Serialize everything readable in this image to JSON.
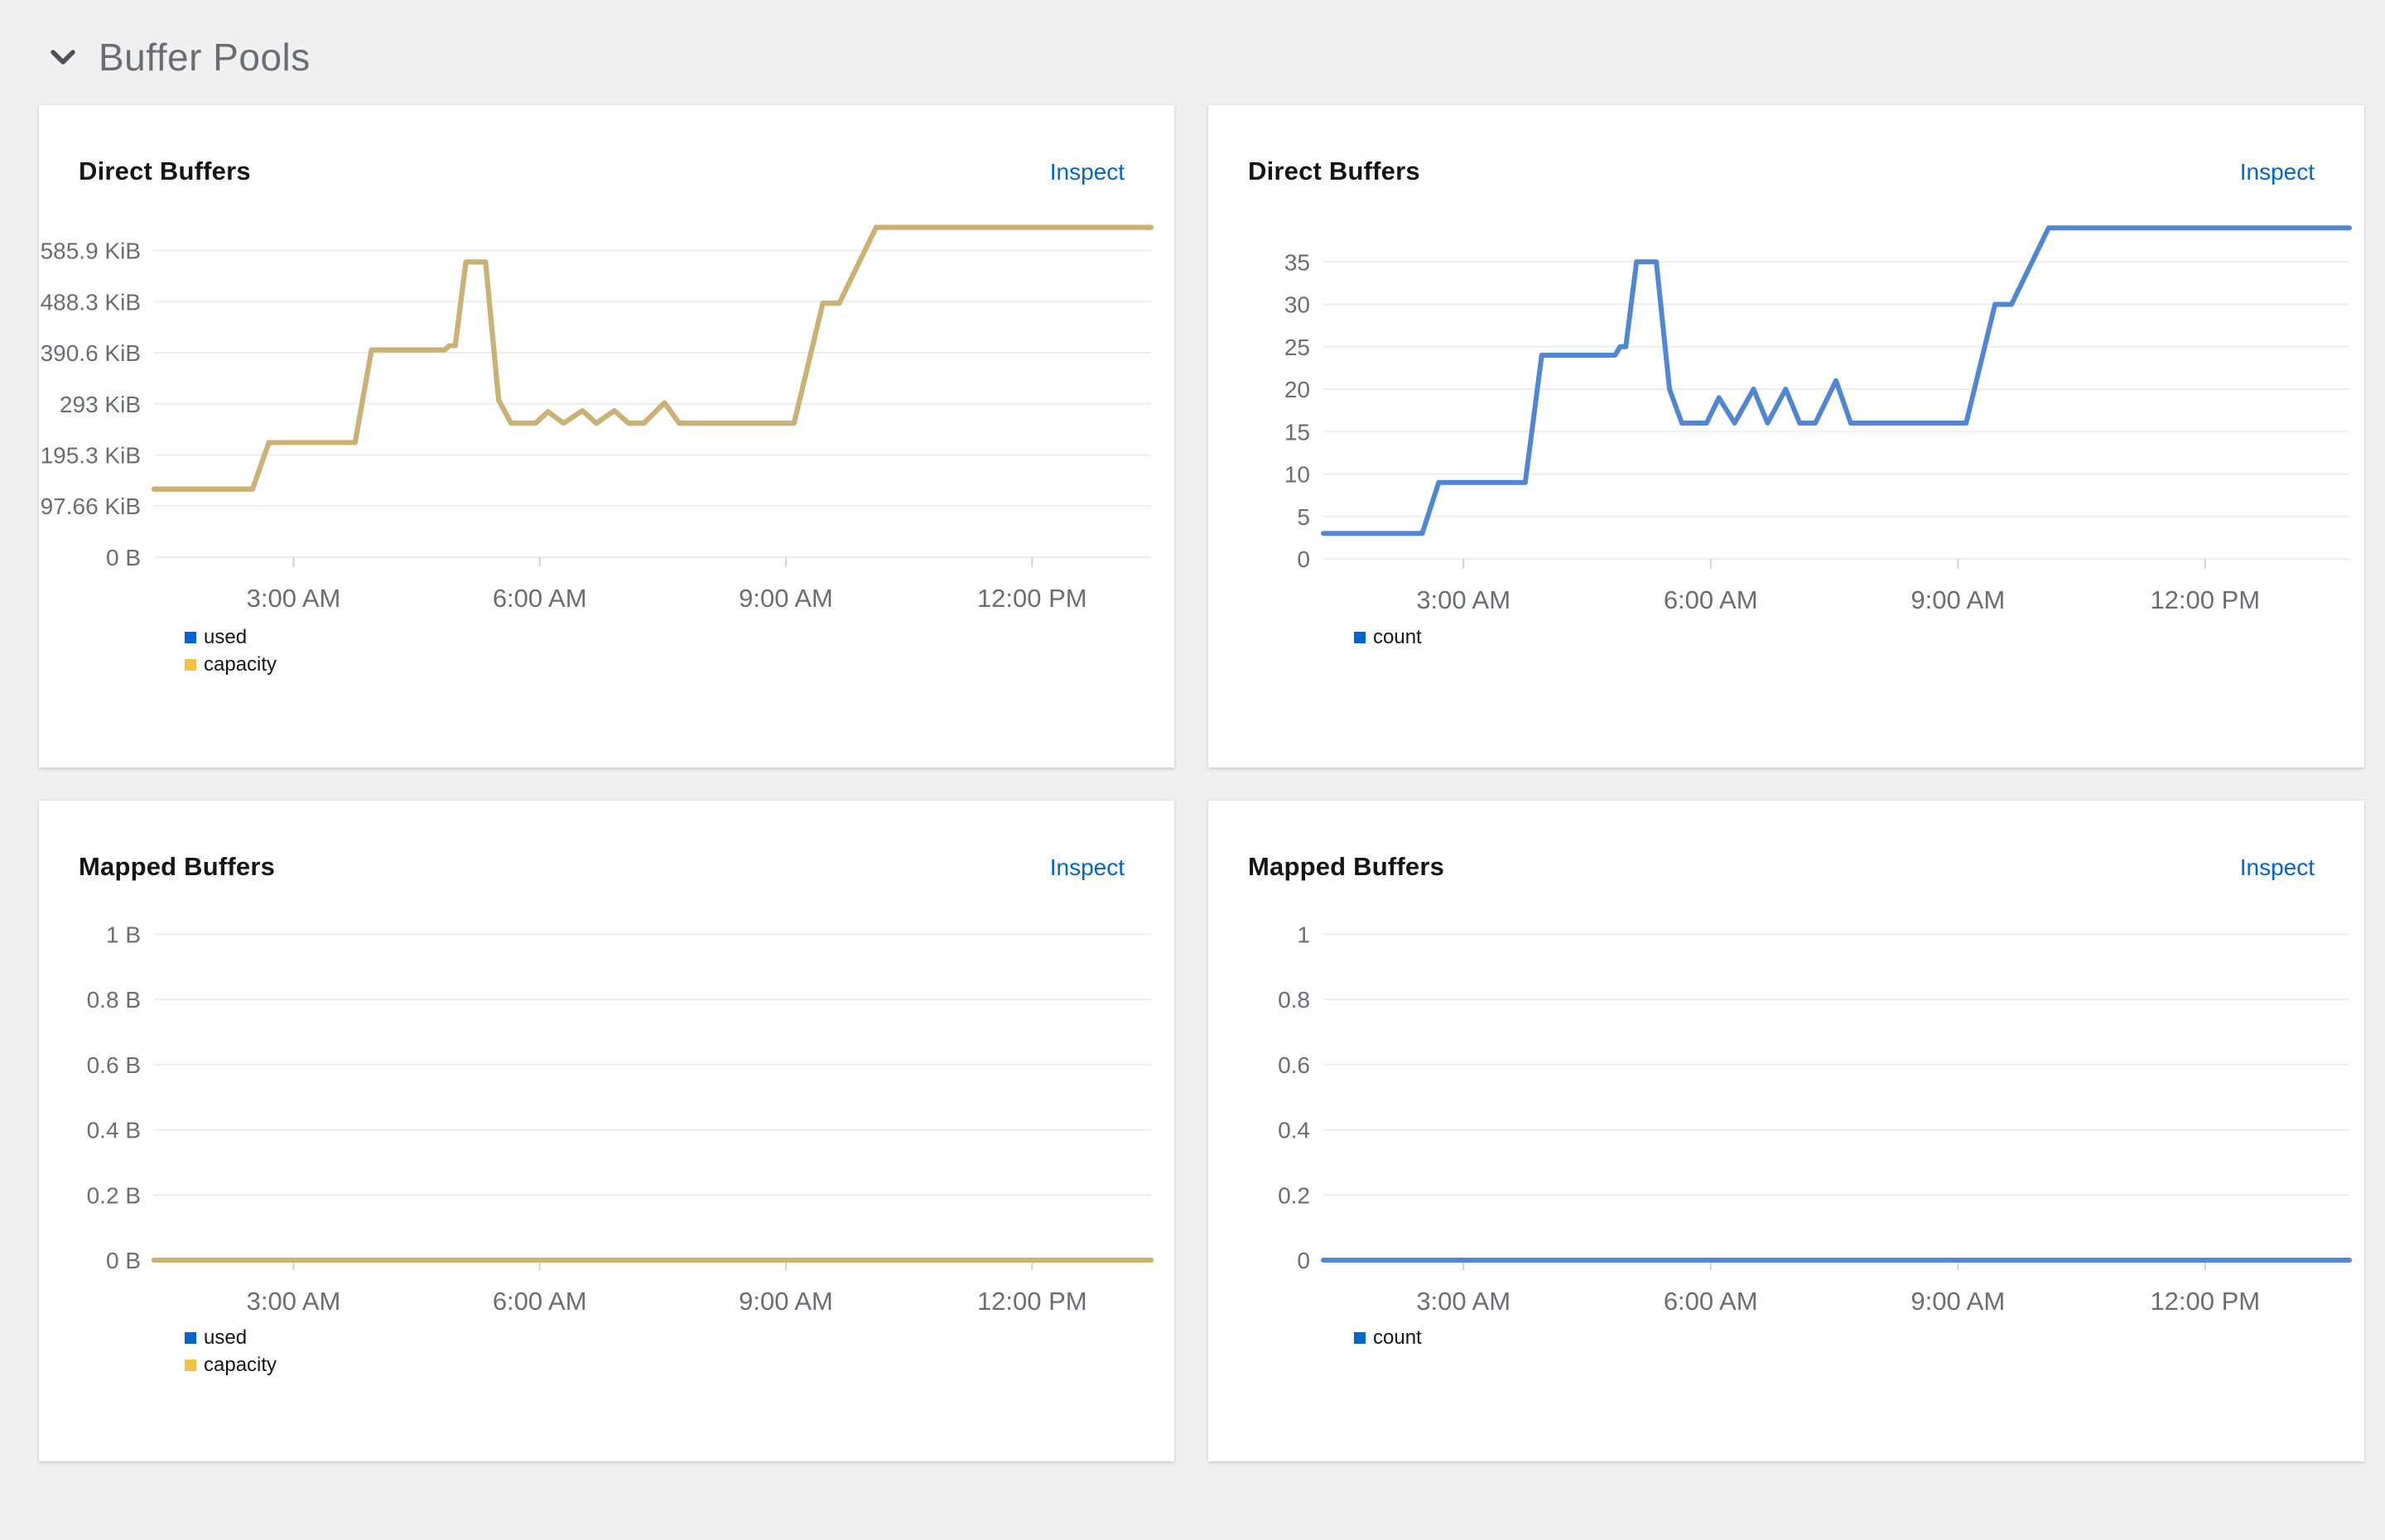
{
  "section": {
    "title": "Buffer Pools"
  },
  "colors": {
    "page_background": "#f0f0f0",
    "card_background": "#ffffff",
    "link": "#0066cc",
    "section_title": "#6a6e73",
    "card_title": "#151515",
    "axis_label": "#6a6e73",
    "gridline": "#ededed",
    "tick_mark": "#d2d2d2",
    "line_gold": "#ccb171",
    "line_blue": "#5087d5",
    "legend_blue": "#0066cc",
    "legend_gold": "#f4c145"
  },
  "chart_data": [
    {
      "type": "line",
      "title": "Direct Buffers",
      "inspect_label": "Inspect",
      "x_axis": {
        "domain": [
          1.3,
          13.45
        ],
        "ticks": [
          {
            "v": 3,
            "label": "3:00 AM"
          },
          {
            "v": 6,
            "label": "6:00 AM"
          },
          {
            "v": 9,
            "label": "9:00 AM"
          },
          {
            "v": 12,
            "label": "12:00 PM"
          }
        ]
      },
      "y_axis": {
        "domain": [
          0,
          650
        ],
        "unit": "KiB",
        "ticks": [
          {
            "v": 0,
            "label": "0 B"
          },
          {
            "v": 97.66,
            "label": "97.66 KiB"
          },
          {
            "v": 195.31,
            "label": "195.3 KiB"
          },
          {
            "v": 292.97,
            "label": "293 KiB"
          },
          {
            "v": 390.63,
            "label": "390.6 KiB"
          },
          {
            "v": 488.28,
            "label": "488.3 KiB"
          },
          {
            "v": 585.94,
            "label": "585.9 KiB"
          }
        ]
      },
      "series": [
        {
          "name": "used",
          "line_color": "#5087d5",
          "points": [
            [
              1.3,
              130
            ],
            [
              2.5,
              130
            ],
            [
              2.7,
              219
            ],
            [
              3.75,
              219
            ],
            [
              3.95,
              396
            ],
            [
              4.84,
              396
            ],
            [
              4.9,
              404
            ],
            [
              4.97,
              404
            ],
            [
              5.1,
              564
            ],
            [
              5.34,
              564
            ],
            [
              5.5,
              300
            ],
            [
              5.65,
              256
            ],
            [
              5.95,
              256
            ],
            [
              6.1,
              278
            ],
            [
              6.29,
              256
            ],
            [
              6.52,
              280
            ],
            [
              6.69,
              256
            ],
            [
              6.91,
              280
            ],
            [
              7.08,
              256
            ],
            [
              7.27,
              256
            ],
            [
              7.52,
              295
            ],
            [
              7.7,
              256
            ],
            [
              9.1,
              256
            ],
            [
              9.45,
              485
            ],
            [
              9.65,
              485
            ],
            [
              10.1,
              630
            ],
            [
              13.45,
              630
            ]
          ]
        },
        {
          "name": "capacity",
          "line_color": "#ccb171",
          "points": [
            [
              1.3,
              130
            ],
            [
              2.5,
              130
            ],
            [
              2.7,
              219
            ],
            [
              3.75,
              219
            ],
            [
              3.95,
              396
            ],
            [
              4.84,
              396
            ],
            [
              4.9,
              404
            ],
            [
              4.97,
              404
            ],
            [
              5.1,
              564
            ],
            [
              5.34,
              564
            ],
            [
              5.5,
              300
            ],
            [
              5.65,
              256
            ],
            [
              5.95,
              256
            ],
            [
              6.1,
              278
            ],
            [
              6.29,
              256
            ],
            [
              6.52,
              280
            ],
            [
              6.69,
              256
            ],
            [
              6.91,
              280
            ],
            [
              7.08,
              256
            ],
            [
              7.27,
              256
            ],
            [
              7.52,
              295
            ],
            [
              7.7,
              256
            ],
            [
              9.1,
              256
            ],
            [
              9.45,
              485
            ],
            [
              9.65,
              485
            ],
            [
              10.1,
              630
            ],
            [
              13.45,
              630
            ]
          ]
        }
      ],
      "legend": [
        {
          "label": "used",
          "color": "#0066cc"
        },
        {
          "label": "capacity",
          "color": "#f4c145"
        }
      ]
    },
    {
      "type": "line",
      "title": "Direct Buffers",
      "inspect_label": "Inspect",
      "x_axis": {
        "domain": [
          1.3,
          13.75
        ],
        "ticks": [
          {
            "v": 3,
            "label": "3:00 AM"
          },
          {
            "v": 6,
            "label": "6:00 AM"
          },
          {
            "v": 9,
            "label": "9:00 AM"
          },
          {
            "v": 12,
            "label": "12:00 PM"
          }
        ]
      },
      "y_axis": {
        "domain": [
          0,
          40.3
        ],
        "unit": "count",
        "ticks": [
          {
            "v": 0,
            "label": "0"
          },
          {
            "v": 5,
            "label": "5"
          },
          {
            "v": 10,
            "label": "10"
          },
          {
            "v": 15,
            "label": "15"
          },
          {
            "v": 20,
            "label": "20"
          },
          {
            "v": 25,
            "label": "25"
          },
          {
            "v": 30,
            "label": "30"
          },
          {
            "v": 35,
            "label": "35"
          }
        ]
      },
      "series": [
        {
          "name": "count",
          "line_color": "#5087d5",
          "points": [
            [
              1.3,
              3
            ],
            [
              2.5,
              3
            ],
            [
              2.7,
              9
            ],
            [
              3.75,
              9
            ],
            [
              3.95,
              24
            ],
            [
              4.84,
              24
            ],
            [
              4.9,
              25
            ],
            [
              4.97,
              25
            ],
            [
              5.1,
              35
            ],
            [
              5.34,
              35
            ],
            [
              5.5,
              20
            ],
            [
              5.65,
              16
            ],
            [
              5.95,
              16
            ],
            [
              6.1,
              19
            ],
            [
              6.29,
              16
            ],
            [
              6.52,
              20
            ],
            [
              6.69,
              16
            ],
            [
              6.91,
              20
            ],
            [
              7.08,
              16
            ],
            [
              7.27,
              16
            ],
            [
              7.52,
              21
            ],
            [
              7.7,
              16
            ],
            [
              9.1,
              16
            ],
            [
              9.45,
              30
            ],
            [
              9.65,
              30
            ],
            [
              10.1,
              39
            ],
            [
              13.75,
              39
            ]
          ]
        }
      ],
      "legend": [
        {
          "label": "count",
          "color": "#0066cc"
        }
      ]
    },
    {
      "type": "line",
      "title": "Mapped Buffers",
      "inspect_label": "Inspect",
      "x_axis": {
        "domain": [
          1.3,
          13.45
        ],
        "ticks": [
          {
            "v": 3,
            "label": "3:00 AM"
          },
          {
            "v": 6,
            "label": "6:00 AM"
          },
          {
            "v": 9,
            "label": "9:00 AM"
          },
          {
            "v": 12,
            "label": "12:00 PM"
          }
        ]
      },
      "y_axis": {
        "domain": [
          0,
          1.085
        ],
        "unit": "B",
        "ticks": [
          {
            "v": 0,
            "label": "0 B"
          },
          {
            "v": 0.2,
            "label": "0.2 B"
          },
          {
            "v": 0.4,
            "label": "0.4 B"
          },
          {
            "v": 0.6,
            "label": "0.6 B"
          },
          {
            "v": 0.8,
            "label": "0.8 B"
          },
          {
            "v": 1,
            "label": "1 B"
          }
        ]
      },
      "series": [
        {
          "name": "used",
          "line_color": "#5087d5",
          "points": [
            [
              1.3,
              0
            ],
            [
              13.45,
              0
            ]
          ]
        },
        {
          "name": "capacity",
          "line_color": "#ccb171",
          "points": [
            [
              1.3,
              0
            ],
            [
              13.45,
              0
            ]
          ]
        }
      ],
      "legend": [
        {
          "label": "used",
          "color": "#0066cc"
        },
        {
          "label": "capacity",
          "color": "#f4c145"
        }
      ]
    },
    {
      "type": "line",
      "title": "Mapped Buffers",
      "inspect_label": "Inspect",
      "x_axis": {
        "domain": [
          1.3,
          13.75
        ],
        "ticks": [
          {
            "v": 3,
            "label": "3:00 AM"
          },
          {
            "v": 6,
            "label": "6:00 AM"
          },
          {
            "v": 9,
            "label": "9:00 AM"
          },
          {
            "v": 12,
            "label": "12:00 PM"
          }
        ]
      },
      "y_axis": {
        "domain": [
          0,
          1.085
        ],
        "unit": "count",
        "ticks": [
          {
            "v": 0,
            "label": "0"
          },
          {
            "v": 0.2,
            "label": "0.2"
          },
          {
            "v": 0.4,
            "label": "0.4"
          },
          {
            "v": 0.6,
            "label": "0.6"
          },
          {
            "v": 0.8,
            "label": "0.8"
          },
          {
            "v": 1,
            "label": "1"
          }
        ]
      },
      "series": [
        {
          "name": "count",
          "line_color": "#5087d5",
          "points": [
            [
              1.3,
              0
            ],
            [
              13.75,
              0
            ]
          ]
        }
      ],
      "legend": [
        {
          "label": "count",
          "color": "#0066cc"
        }
      ]
    }
  ]
}
